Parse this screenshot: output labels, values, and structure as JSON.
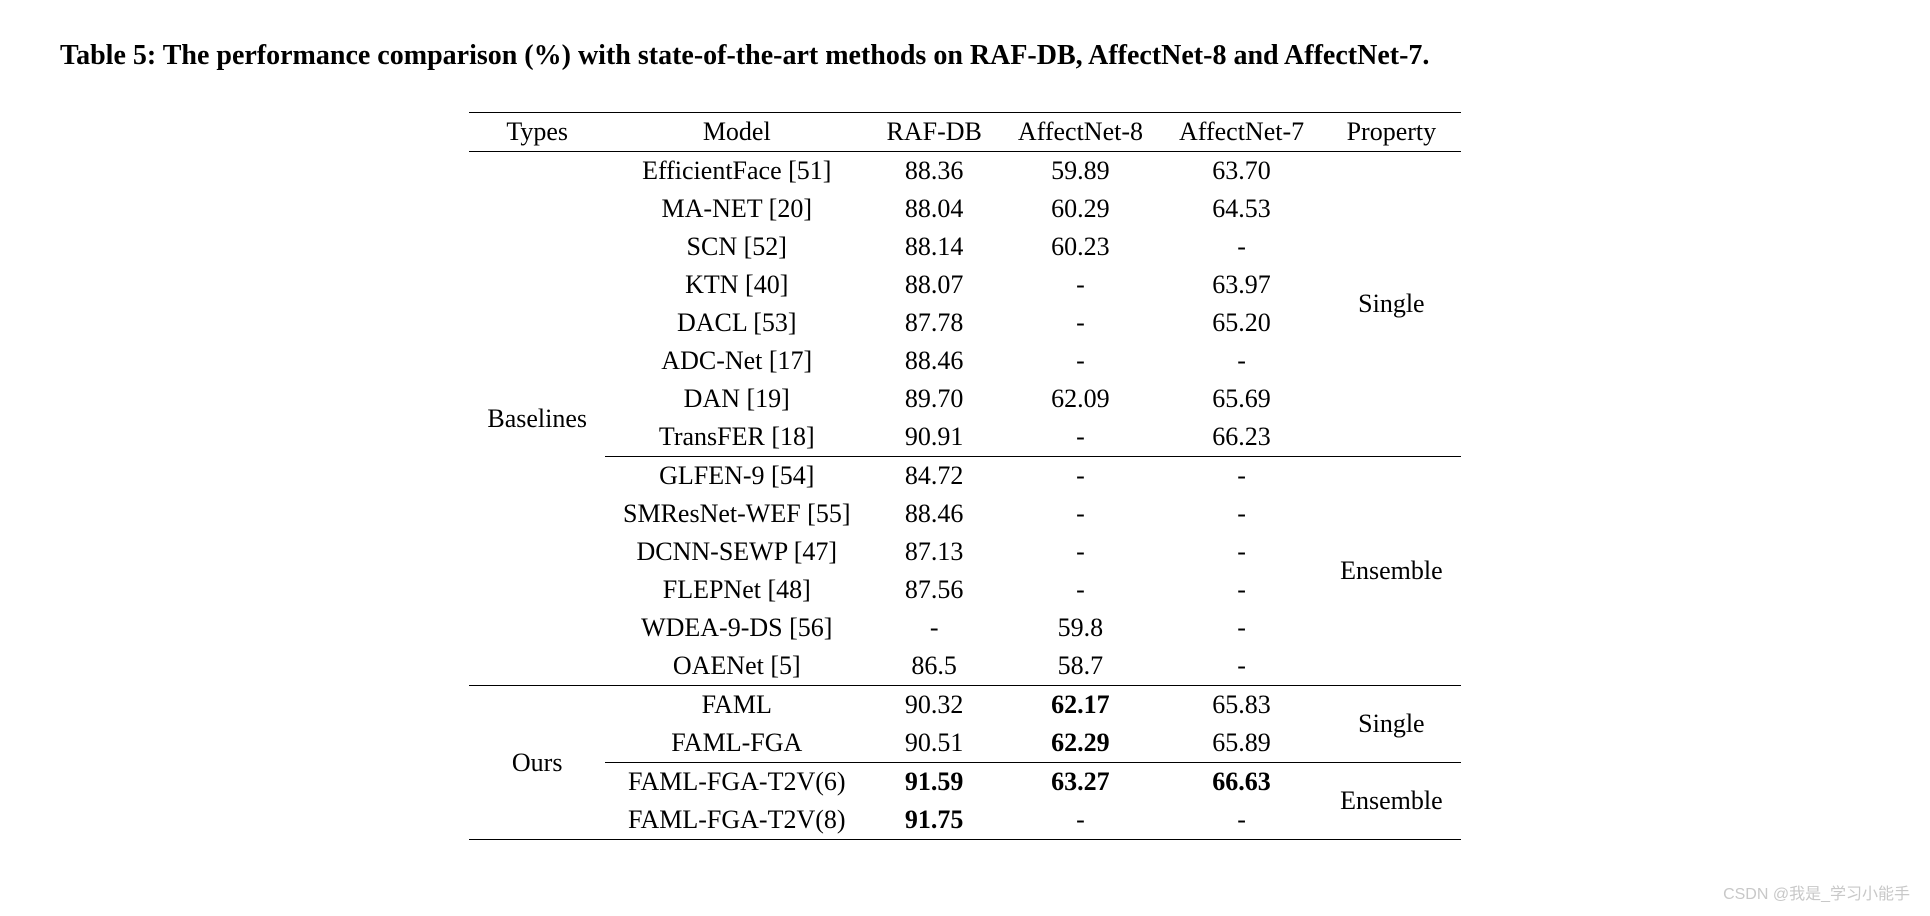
{
  "caption": "Table 5: The performance comparison (%) with state-of-the-art methods on RAF-DB, AffectNet-8 and AffectNet-7.",
  "columns": [
    "Types",
    "Model",
    "RAF-DB",
    "AffectNet-8",
    "AffectNet-7",
    "Property"
  ],
  "groups": [
    {
      "type": "Baselines",
      "subgroups": [
        {
          "property": "Single",
          "rows": [
            {
              "model": "EfficientFace [51]",
              "raf": "88.36",
              "a8": "59.89",
              "a7": "63.70"
            },
            {
              "model": "MA-NET [20]",
              "raf": "88.04",
              "a8": "60.29",
              "a7": "64.53"
            },
            {
              "model": "SCN [52]",
              "raf": "88.14",
              "a8": "60.23",
              "a7": "-"
            },
            {
              "model": "KTN [40]",
              "raf": "88.07",
              "a8": "-",
              "a7": "63.97"
            },
            {
              "model": "DACL [53]",
              "raf": "87.78",
              "a8": "-",
              "a7": "65.20"
            },
            {
              "model": "ADC-Net [17]",
              "raf": "88.46",
              "a8": "-",
              "a7": "-"
            },
            {
              "model": "DAN [19]",
              "raf": "89.70",
              "a8": "62.09",
              "a7": "65.69"
            },
            {
              "model": "TransFER [18]",
              "raf": "90.91",
              "a8": "-",
              "a7": "66.23"
            }
          ]
        },
        {
          "property": "Ensemble",
          "rows": [
            {
              "model": "GLFEN-9 [54]",
              "raf": "84.72",
              "a8": "-",
              "a7": "-"
            },
            {
              "model": "SMResNet-WEF [55]",
              "raf": "88.46",
              "a8": "-",
              "a7": "-"
            },
            {
              "model": "DCNN-SEWP [47]",
              "raf": "87.13",
              "a8": "-",
              "a7": "-"
            },
            {
              "model": "FLEPNet [48]",
              "raf": "87.56",
              "a8": "-",
              "a7": "-"
            },
            {
              "model": "WDEA-9-DS [56]",
              "raf": "-",
              "a8": "59.8",
              "a7": "-"
            },
            {
              "model": "OAENet [5]",
              "raf": "86.5",
              "a8": "58.7",
              "a7": "-"
            }
          ]
        }
      ]
    },
    {
      "type": "Ours",
      "subgroups": [
        {
          "property": "Single",
          "rows": [
            {
              "model": "FAML",
              "raf": "90.32",
              "a8": "62.17",
              "a7": "65.83",
              "bold_a8": true
            },
            {
              "model": "FAML-FGA",
              "raf": "90.51",
              "a8": "62.29",
              "a7": "65.89",
              "bold_a8": true
            }
          ]
        },
        {
          "property": "Ensemble",
          "rows": [
            {
              "model": "FAML-FGA-T2V(6)",
              "raf": "91.59",
              "a8": "63.27",
              "a7": "66.63",
              "bold_raf": true,
              "bold_a8": true,
              "bold_a7": true
            },
            {
              "model": "FAML-FGA-T2V(8)",
              "raf": "91.75",
              "a8": "-",
              "a7": "-",
              "bold_raf": true
            }
          ]
        }
      ]
    }
  ],
  "watermark": "CSDN @我是_学习小能手",
  "style": {
    "font_family": "Times New Roman",
    "caption_fontsize": 28,
    "body_fontsize": 26,
    "text_color": "#000000",
    "background_color": "#ffffff",
    "watermark_color": "#c8c8c8"
  }
}
